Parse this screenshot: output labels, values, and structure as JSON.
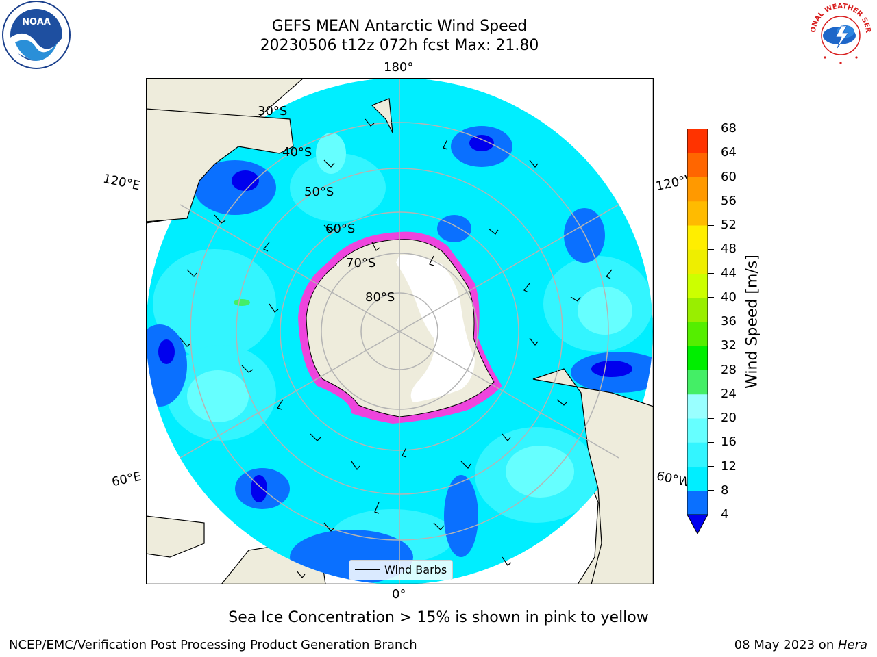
{
  "title": {
    "line1": "GEFS MEAN Antarctic Wind Speed",
    "line2": "20230506 t12z 072h fcst   Max: 21.80"
  },
  "map": {
    "longitude_labels": [
      "180°",
      "120°E",
      "120°W",
      "60°E",
      "60°W",
      "0°"
    ],
    "latitude_labels": [
      "30°S",
      "40°S",
      "50°S",
      "60°S",
      "70°S",
      "80°S"
    ],
    "legend": "Wind Barbs"
  },
  "colorbar": {
    "label": "Wind Speed [m/s]",
    "ticks": [
      "4",
      "8",
      "12",
      "16",
      "20",
      "24",
      "28",
      "32",
      "36",
      "40",
      "44",
      "48",
      "52",
      "56",
      "60",
      "64",
      "68"
    ],
    "colors": [
      "#0a70ff",
      "#00eeff",
      "#33f5ff",
      "#66ffff",
      "#99ffff",
      "#44ee66",
      "#00ee00",
      "#55ee00",
      "#99ee00",
      "#ccff00",
      "#eeee00",
      "#ffee00",
      "#ffbb00",
      "#ff9900",
      "#ff6600",
      "#ff3300",
      "#ff0000"
    ],
    "under_color": "#0000ee"
  },
  "caption": "Sea Ice Concentration > 15% is shown in pink to yellow",
  "footer": {
    "left": "NCEP/EMC/Verification Post Processing Product Generation Branch",
    "right_prefix": "08 May 2023 on ",
    "right_host": "Hera"
  },
  "logos": {
    "noaa": "NOAA",
    "nws": "NATIONAL WEATHER SERVICE"
  }
}
